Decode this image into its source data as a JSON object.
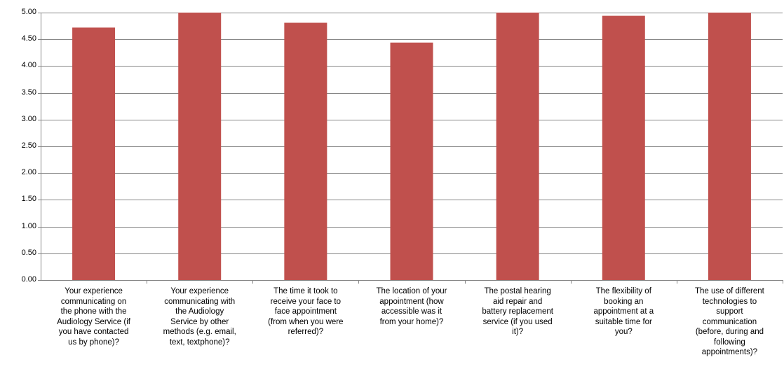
{
  "chart_data": {
    "type": "bar",
    "categories": [
      "Your experience\ncommunicating on\nthe phone with the\nAudiology Service (if\nyou have contacted\nus by phone)?",
      "Your experience\ncommunicating with\nthe Audiology\nService by other\nmethods (e.g. email,\ntext, textphone)?",
      "The time it took to\nreceive your face to\nface appointment\n(from when you were\nreferred)?",
      "The location of your\nappointment (how\naccessible was it\nfrom your home)?",
      "The postal hearing\naid repair and\nbattery replacement\nservice (if you used\nit)?",
      "The flexibility of\nbooking an\nappointment at a\nsuitable time for\nyou?",
      "The use of different\ntechnologies to\nsupport\ncommunication\n(before, during and\nfollowing\nappointments)?"
    ],
    "values": [
      4.72,
      5.0,
      4.81,
      4.44,
      5.0,
      4.94,
      5.0
    ],
    "yticks": [
      "0.00",
      "0.50",
      "1.00",
      "1.50",
      "2.00",
      "2.50",
      "3.00",
      "3.50",
      "4.00",
      "4.50",
      "5.00"
    ],
    "ylim": [
      0,
      5
    ],
    "grid": true,
    "bar_color": "#c0504d",
    "grid_color": "#868686"
  }
}
